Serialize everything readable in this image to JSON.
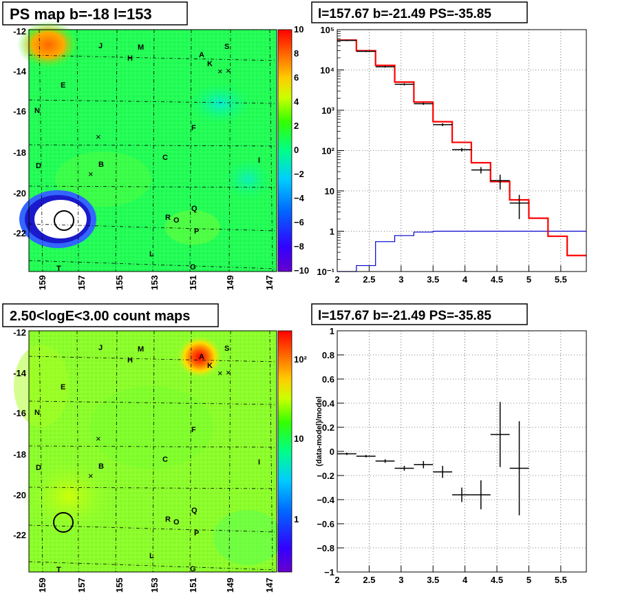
{
  "map_top": {
    "title": "PS map b=-18 l=153",
    "x_ticks": [
      "159",
      "157",
      "155",
      "153",
      "151",
      "149",
      "147"
    ],
    "y_ticks": [
      "-12",
      "-14",
      "-16",
      "-18",
      "-20",
      "-22"
    ],
    "colorbar_ticks": [
      "10",
      "8",
      "6",
      "4",
      "2",
      "0",
      "−2",
      "−4",
      "−6",
      "−8",
      "−10"
    ]
  },
  "map_bottom": {
    "title": "2.50<logE<3.00 count maps",
    "x_ticks": [
      "159",
      "157",
      "155",
      "153",
      "151",
      "149",
      "147"
    ],
    "y_ticks": [
      "-12",
      "-14",
      "-16",
      "-18",
      "-20",
      "-22"
    ],
    "colorbar_ticks": [
      "10²",
      "10",
      "1"
    ]
  },
  "source_labels": [
    "J",
    "M",
    "H",
    "A",
    "S",
    "K",
    "E",
    "N",
    "F",
    "C",
    "B",
    "D",
    "I",
    "Q",
    "R",
    "O",
    "P",
    "L",
    "T",
    "G"
  ],
  "cross_markers": [
    "×",
    "×",
    "×",
    "×"
  ],
  "spectrum_top": {
    "title": "l=157.67 b=-21.49 PS=-35.85",
    "x_ticks": [
      "2",
      "2.5",
      "3",
      "3.5",
      "4",
      "4.5",
      "5",
      "5.5"
    ],
    "y_ticks": [
      "10⁻¹",
      "1",
      "10",
      "10²",
      "10³",
      "10⁴",
      "10⁵"
    ]
  },
  "residual_bottom": {
    "title": "l=157.67 b=-21.49 PS=-35.85",
    "ylabel": "(data-model)/model",
    "x_ticks": [
      "2",
      "2.5",
      "3",
      "3.5",
      "4",
      "4.5",
      "5",
      "5.5"
    ],
    "y_ticks": [
      "1",
      "0.8",
      "0.6",
      "0.4",
      "0.2",
      "0",
      "−0.2",
      "−0.4",
      "−0.6",
      "−0.8",
      "−1"
    ]
  },
  "colors": {
    "model": "#ff0000",
    "data": "#000000",
    "ps_model": "#0000cc"
  },
  "chart_data": [
    {
      "type": "heatmap",
      "title": "PS map b=-18 l=153",
      "xlim": [
        159.5,
        146.5
      ],
      "ylim": [
        -23.8,
        -12
      ],
      "zlim": [
        -10,
        10
      ],
      "notable_features": [
        "white/blue hole near l=158.2 b=-21.5",
        "warm spot near l=159 b=-13"
      ]
    },
    {
      "type": "line",
      "title": "l=157.67 b=-21.49 PS=-35.85",
      "xlim": [
        2,
        5.9
      ],
      "ylim": [
        0.1,
        100000
      ],
      "yscale": "log",
      "grid": true,
      "series": [
        {
          "values": [
            [
              2,
              55000
            ],
            [
              2.3,
              30000
            ],
            [
              2.6,
              13000
            ],
            [
              2.9,
              5000
            ],
            [
              3.2,
              1600
            ],
            [
              3.5,
              520
            ],
            [
              3.8,
              160
            ],
            [
              4.1,
              50
            ],
            [
              4.4,
              17
            ],
            [
              4.7,
              6
            ],
            [
              5.0,
              2.1
            ],
            [
              5.3,
              0.75
            ],
            [
              5.6,
              0.25
            ]
          ]
        },
        {
          "values": [
            [
              2,
              0.1
            ],
            [
              2.3,
              0.14
            ],
            [
              2.6,
              0.55
            ],
            [
              2.9,
              0.78
            ],
            [
              3.2,
              0.95
            ],
            [
              3.5,
              1.0
            ],
            [
              5.9,
              1.0
            ]
          ]
        },
        {
          "values": [
            [
              2.15,
              54000
            ],
            [
              2.45,
              29000
            ],
            [
              2.75,
              12000
            ],
            [
              3.05,
              4400
            ],
            [
              3.35,
              1450
            ],
            [
              3.65,
              440
            ],
            [
              3.95,
              105
            ],
            [
              4.25,
              33
            ],
            [
              4.55,
              18
            ],
            [
              4.85,
              5
            ]
          ]
        }
      ]
    },
    {
      "type": "scatter",
      "title": "l=157.67 b=-21.49 PS=-35.85",
      "ylabel": "(data-model)/model",
      "xlim": [
        2,
        5.9
      ],
      "ylim": [
        -1,
        1
      ],
      "grid": true,
      "series": [
        {
          "x": [
            2.15,
            2.45,
            2.75,
            3.05,
            3.35,
            3.65,
            3.95,
            4.25,
            4.55,
            4.85
          ],
          "y": [
            -0.02,
            -0.04,
            -0.08,
            -0.14,
            -0.11,
            -0.17,
            -0.36,
            -0.36,
            0.14,
            -0.14
          ],
          "yerr": [
            0.01,
            0.01,
            0.015,
            0.02,
            0.03,
            0.05,
            0.06,
            0.12,
            0.27,
            0.39
          ]
        }
      ]
    }
  ]
}
